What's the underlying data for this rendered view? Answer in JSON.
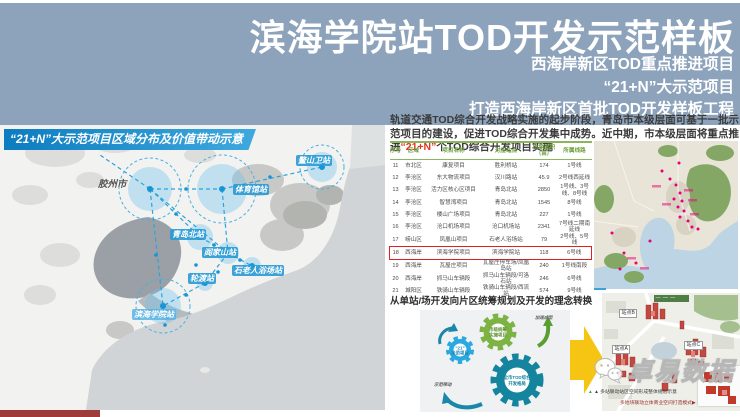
{
  "banner": {
    "title": "滨海学院站TOD开发示范样板",
    "line1": "西海岸新区TOD重点推进项目",
    "line2": "“21+N”大示范项目",
    "line3": "打造西海岸新区首批TOD开发样板工程"
  },
  "left_map": {
    "header": "“21+N”大示范项目区域分布及价值带动示意",
    "labels": {
      "jiaozhou": "胶州市",
      "aoshanwei": "鳌山卫站",
      "tiyuguan": "体育馆站",
      "qingdaobei": "青岛北站",
      "yanjiashan": "阎家山站",
      "shilaoren": "石老人浴场站",
      "lundu": "轮渡站",
      "binhai": "滨海学院站"
    }
  },
  "intro": {
    "part1": "轨道交通TOD综合开发战略实施的起步阶段，青岛市本级层面可基于一批示范项目的建设，促进TOD综合开发集中成势。近中期，市本级层面将重点推进",
    "accent": "“21+N”",
    "part2": "个TOD综合开发项目实施"
  },
  "table": {
    "headers": [
      "序号",
      "区域",
      "项目名称",
      "对应站点",
      "占地面积（亩）",
      "所属线路"
    ],
    "highlight_row_index": 7,
    "rows": [
      [
        "11",
        "市北区",
        "康复项目",
        "胜利桥站",
        "174",
        "1号线"
      ],
      [
        "12",
        "李沧区",
        "东大物流项目",
        "汉川路站",
        "45.9",
        "2号线西延线"
      ],
      [
        "13",
        "李沧区",
        "活力区核心区项目",
        "青岛北站",
        "2850",
        "1号线、3号线、8号线"
      ],
      [
        "14",
        "李沧区",
        "智慧湾项目",
        "青岛北站",
        "1545",
        "8号线"
      ],
      [
        "15",
        "李沧区",
        "楼山广场项目",
        "青岛北站",
        "227",
        "1号线"
      ],
      [
        "16",
        "李沧区",
        "沧口机场项目",
        "沧口机场站",
        "2341",
        "7号线二期南延线"
      ],
      [
        "17",
        "崂山区",
        "凤凰山项目",
        "石老人浴场站",
        "79",
        "2号线、5号线"
      ],
      [
        "18",
        "西海岸",
        "滨海学院项目",
        "滨海学院站",
        "118",
        "6号线"
      ],
      [
        "19",
        "西海岸",
        "瓦屋庄项目",
        "瓦屋庄停车场/凤凰岛站",
        "240",
        "1号线南段"
      ],
      [
        "20",
        "西海岸",
        "抓马山车辆段",
        "抓马山车辆段/可洛石站",
        "246",
        "6号线"
      ],
      [
        "21",
        "城阳区",
        "铁骑山车辆段",
        "铁骑山车辆段/西流站",
        "574",
        "9号线"
      ]
    ]
  },
  "transition": {
    "heading": "从单站/场开发向片区统筹规划及开发的理念转换",
    "gear_small_1": "“21”",
    "gear_small_2": "示范项目",
    "gear_green_1": "市级统筹",
    "gear_green_2": "实施项目",
    "gear_big_1": "全市TOD综合",
    "gear_big_2": "开发格局",
    "arrow_top_label": "加速成型",
    "arrow_bottom_label": "示范带动"
  },
  "render": {
    "station_a": "站点A",
    "station_b": "站点B",
    "station_c": "站点C",
    "caption1": "▲ 多站联动站区空间形成整体规划示意",
    "caption2": "多地块联动立体商业空间打造模式▶"
  },
  "watermark": "卓易数据",
  "colors": {
    "banner_bg": "#8da3bb",
    "accent_red": "#e63323",
    "table_green": "#6fa03c",
    "map_blue": "#2196d3",
    "gear_green": "#7cb342",
    "gear_blue": "#29a9e0",
    "gear_teal": "#15849e",
    "arrow_yellow": "#f6c514",
    "marker_magenta": "#e6007e",
    "highlight_box_red": "#e01f1f"
  }
}
